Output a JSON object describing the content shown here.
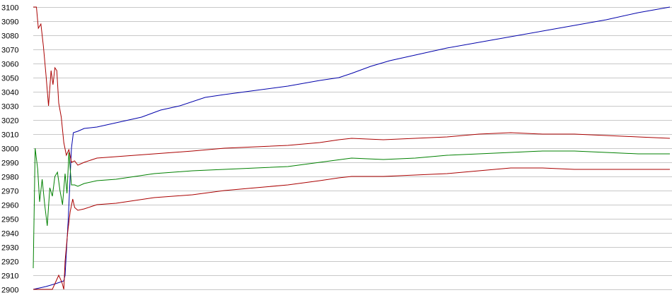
{
  "chart_data": {
    "type": "line",
    "title": "",
    "xlabel": "",
    "ylabel": "",
    "ylim": [
      2900,
      3100
    ],
    "xlim": [
      0,
      1
    ],
    "grid": true,
    "legend": "none",
    "yticks": [
      2900,
      2910,
      2920,
      2930,
      2940,
      2950,
      2960,
      2970,
      2980,
      2990,
      3000,
      3010,
      3020,
      3030,
      3040,
      3050,
      3060,
      3070,
      3080,
      3090,
      3100
    ],
    "series": [
      {
        "color": "#0000aa",
        "points": [
          [
            0.0,
            2900
          ],
          [
            0.02,
            2902
          ],
          [
            0.035,
            2904
          ],
          [
            0.048,
            2906
          ],
          [
            0.05,
            2910
          ],
          [
            0.055,
            2950
          ],
          [
            0.06,
            3000
          ],
          [
            0.063,
            3011
          ],
          [
            0.07,
            3012
          ],
          [
            0.08,
            3014
          ],
          [
            0.1,
            3015
          ],
          [
            0.13,
            3018
          ],
          [
            0.17,
            3022
          ],
          [
            0.2,
            3027
          ],
          [
            0.23,
            3030
          ],
          [
            0.27,
            3036
          ],
          [
            0.3,
            3038
          ],
          [
            0.35,
            3041
          ],
          [
            0.4,
            3044
          ],
          [
            0.45,
            3048
          ],
          [
            0.48,
            3050
          ],
          [
            0.5,
            3053
          ],
          [
            0.53,
            3058
          ],
          [
            0.56,
            3062
          ],
          [
            0.6,
            3066
          ],
          [
            0.65,
            3071
          ],
          [
            0.7,
            3075
          ],
          [
            0.75,
            3079
          ],
          [
            0.8,
            3083
          ],
          [
            0.85,
            3087
          ],
          [
            0.9,
            3091
          ],
          [
            0.95,
            3096
          ],
          [
            1.0,
            3100
          ]
        ]
      },
      {
        "color": "#aa0000",
        "points": [
          [
            0.0,
            3100
          ],
          [
            0.005,
            3100
          ],
          [
            0.008,
            3085
          ],
          [
            0.012,
            3088
          ],
          [
            0.016,
            3072
          ],
          [
            0.02,
            3052
          ],
          [
            0.024,
            3030
          ],
          [
            0.028,
            3055
          ],
          [
            0.031,
            3045
          ],
          [
            0.034,
            3057
          ],
          [
            0.037,
            3055
          ],
          [
            0.04,
            3032
          ],
          [
            0.044,
            3022
          ],
          [
            0.048,
            3004
          ],
          [
            0.052,
            2995
          ],
          [
            0.056,
            2999
          ],
          [
            0.06,
            2990
          ],
          [
            0.065,
            2991
          ],
          [
            0.07,
            2988
          ],
          [
            0.08,
            2990
          ],
          [
            0.1,
            2993
          ],
          [
            0.13,
            2994
          ],
          [
            0.16,
            2995
          ],
          [
            0.19,
            2996
          ],
          [
            0.22,
            2997
          ],
          [
            0.25,
            2998
          ],
          [
            0.3,
            3000
          ],
          [
            0.35,
            3001
          ],
          [
            0.4,
            3002
          ],
          [
            0.45,
            3004
          ],
          [
            0.48,
            3006
          ],
          [
            0.5,
            3007
          ],
          [
            0.55,
            3006
          ],
          [
            0.6,
            3007
          ],
          [
            0.65,
            3008
          ],
          [
            0.7,
            3010
          ],
          [
            0.75,
            3011
          ],
          [
            0.8,
            3010
          ],
          [
            0.85,
            3010
          ],
          [
            0.9,
            3009
          ],
          [
            0.95,
            3008
          ],
          [
            1.0,
            3007
          ]
        ]
      },
      {
        "color": "#008000",
        "points": [
          [
            0.0,
            2915
          ],
          [
            0.003,
            3000
          ],
          [
            0.007,
            2985
          ],
          [
            0.01,
            2962
          ],
          [
            0.014,
            2978
          ],
          [
            0.018,
            2960
          ],
          [
            0.022,
            2945
          ],
          [
            0.026,
            2972
          ],
          [
            0.03,
            2966
          ],
          [
            0.034,
            2980
          ],
          [
            0.038,
            2983
          ],
          [
            0.042,
            2970
          ],
          [
            0.046,
            2960
          ],
          [
            0.05,
            2982
          ],
          [
            0.053,
            2968
          ],
          [
            0.056,
            2997
          ],
          [
            0.06,
            2974
          ],
          [
            0.065,
            2974
          ],
          [
            0.07,
            2973
          ],
          [
            0.08,
            2975
          ],
          [
            0.1,
            2977
          ],
          [
            0.13,
            2978
          ],
          [
            0.16,
            2980
          ],
          [
            0.19,
            2982
          ],
          [
            0.22,
            2983
          ],
          [
            0.25,
            2984
          ],
          [
            0.3,
            2985
          ],
          [
            0.35,
            2986
          ],
          [
            0.4,
            2987
          ],
          [
            0.45,
            2990
          ],
          [
            0.5,
            2993
          ],
          [
            0.55,
            2992
          ],
          [
            0.6,
            2993
          ],
          [
            0.65,
            2995
          ],
          [
            0.7,
            2996
          ],
          [
            0.75,
            2997
          ],
          [
            0.8,
            2998
          ],
          [
            0.85,
            2998
          ],
          [
            0.9,
            2997
          ],
          [
            0.95,
            2996
          ],
          [
            1.0,
            2996
          ]
        ]
      },
      {
        "color": "#aa0000",
        "points": [
          [
            0.0,
            2900
          ],
          [
            0.03,
            2900
          ],
          [
            0.04,
            2910
          ],
          [
            0.045,
            2905
          ],
          [
            0.048,
            2900
          ],
          [
            0.05,
            2920
          ],
          [
            0.054,
            2940
          ],
          [
            0.058,
            2955
          ],
          [
            0.062,
            2964
          ],
          [
            0.065,
            2958
          ],
          [
            0.07,
            2956
          ],
          [
            0.08,
            2957
          ],
          [
            0.1,
            2960
          ],
          [
            0.13,
            2961
          ],
          [
            0.16,
            2963
          ],
          [
            0.19,
            2965
          ],
          [
            0.22,
            2966
          ],
          [
            0.25,
            2967
          ],
          [
            0.3,
            2970
          ],
          [
            0.35,
            2972
          ],
          [
            0.4,
            2974
          ],
          [
            0.45,
            2977
          ],
          [
            0.48,
            2979
          ],
          [
            0.5,
            2980
          ],
          [
            0.55,
            2980
          ],
          [
            0.6,
            2981
          ],
          [
            0.65,
            2982
          ],
          [
            0.7,
            2984
          ],
          [
            0.75,
            2986
          ],
          [
            0.8,
            2986
          ],
          [
            0.85,
            2985
          ],
          [
            0.9,
            2985
          ],
          [
            0.95,
            2985
          ],
          [
            1.0,
            2985
          ]
        ]
      }
    ]
  }
}
